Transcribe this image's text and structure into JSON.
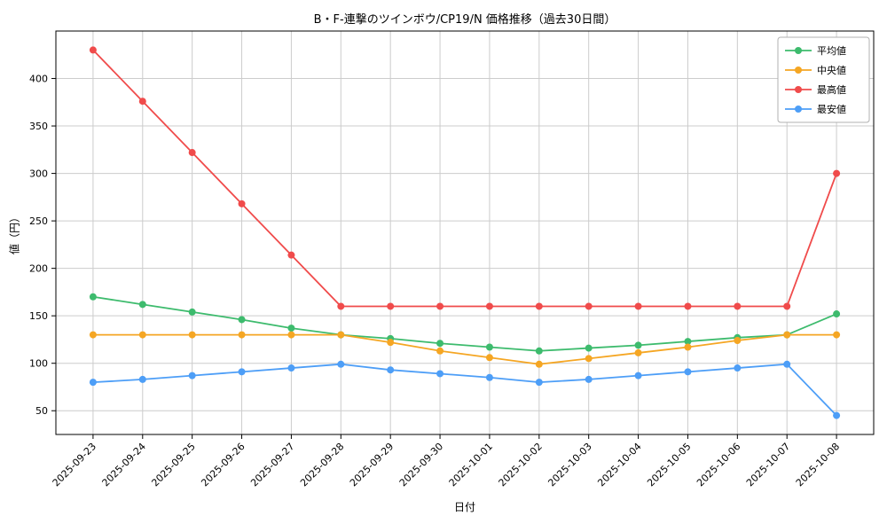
{
  "chart_data": {
    "type": "line",
    "title": "B・F-連撃のツインボウ/CP19/N 価格推移（過去30日間）",
    "xlabel": "日付",
    "ylabel": "値（円）",
    "x": [
      "2025-09-23",
      "2025-09-24",
      "2025-09-25",
      "2025-09-26",
      "2025-09-27",
      "2025-09-28",
      "2025-09-29",
      "2025-09-30",
      "2025-10-01",
      "2025-10-02",
      "2025-10-03",
      "2025-10-04",
      "2025-10-05",
      "2025-10-06",
      "2025-10-07",
      "2025-10-08"
    ],
    "series": [
      {
        "name": "average",
        "label": "平均値",
        "color": "#3dbb6d",
        "values": [
          170,
          162,
          154,
          146,
          137,
          130,
          126,
          121,
          117,
          113,
          116,
          119,
          123,
          127,
          130,
          152
        ]
      },
      {
        "name": "median",
        "label": "中央値",
        "color": "#f5a623",
        "values": [
          130,
          130,
          130,
          130,
          130,
          130,
          122,
          113,
          106,
          99,
          105,
          111,
          117,
          124,
          130,
          130
        ]
      },
      {
        "name": "max",
        "label": "最高値",
        "color": "#f04b4b",
        "values": [
          430,
          376,
          322,
          268,
          214,
          160,
          160,
          160,
          160,
          160,
          160,
          160,
          160,
          160,
          160,
          300
        ]
      },
      {
        "name": "min",
        "label": "最安値",
        "color": "#4d9ef7",
        "values": [
          80,
          83,
          87,
          91,
          95,
          99,
          93,
          89,
          85,
          80,
          83,
          87,
          91,
          95,
          99,
          45
        ]
      }
    ],
    "ylim": [
      25,
      450
    ],
    "yticks": [
      50,
      100,
      150,
      200,
      250,
      300,
      350,
      400
    ],
    "grid": true,
    "grid_color": "#cccccc",
    "axis_color": "#000000",
    "legend_position": "upper right"
  }
}
